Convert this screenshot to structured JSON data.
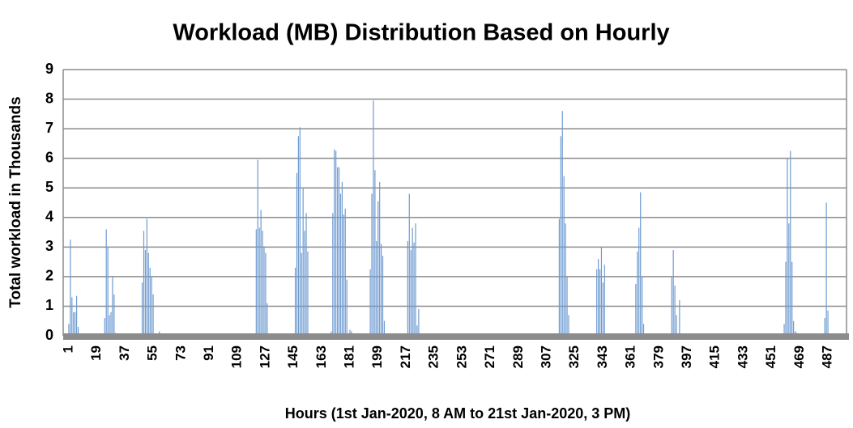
{
  "chart_data": {
    "type": "bar",
    "title": "Workload (MB) Distribution Based on Hourly",
    "xlabel": "Hours (1st Jan-2020, 8 AM to 21st Jan-2020, 3 PM)",
    "ylabel": "Total workload in Thousands",
    "color": "#6f9bd1",
    "grid": true,
    "xlim": [
      -2.6,
      498.9
    ],
    "xticks": [
      1,
      19,
      37,
      55,
      73,
      91,
      109,
      127,
      145,
      163,
      181,
      199,
      217,
      235,
      253,
      271,
      289,
      307,
      325,
      343,
      361,
      379,
      397,
      415,
      433,
      451,
      469,
      487
    ],
    "ylim": [
      0,
      9
    ],
    "yticks": [
      0,
      1,
      2,
      3,
      4,
      5,
      6,
      7,
      8,
      9
    ],
    "x": [
      1,
      2,
      3,
      4,
      5,
      6,
      7,
      24,
      25,
      26,
      27,
      28,
      29,
      30,
      31,
      48,
      49,
      50,
      51,
      52,
      53,
      54,
      55,
      59,
      121,
      122,
      123,
      124,
      125,
      126,
      127,
      128,
      146,
      147,
      148,
      149,
      150,
      151,
      152,
      153,
      154,
      169,
      170,
      171,
      172,
      173,
      174,
      175,
      176,
      177,
      178,
      179,
      181,
      182,
      194,
      195,
      196,
      197,
      198,
      199,
      200,
      201,
      202,
      203,
      218,
      219,
      220,
      221,
      222,
      223,
      224,
      225,
      315,
      316,
      317,
      318,
      319,
      320,
      321,
      339,
      340,
      341,
      342,
      343,
      344,
      364,
      365,
      366,
      367,
      368,
      369,
      387,
      388,
      389,
      390,
      392,
      459,
      460,
      461,
      462,
      463,
      464,
      465,
      466,
      467,
      485,
      486,
      487
    ],
    "values": [
      0.4,
      3.25,
      1.3,
      0.8,
      0.8,
      1.35,
      0.3,
      0.6,
      3.6,
      3.0,
      0.7,
      0.8,
      2.0,
      1.4,
      0.1,
      1.8,
      3.55,
      2.9,
      3.95,
      2.8,
      2.3,
      2.0,
      1.4,
      0.15,
      3.6,
      5.95,
      3.65,
      4.25,
      3.55,
      3.0,
      2.8,
      1.1,
      2.3,
      5.5,
      6.75,
      7.05,
      2.8,
      5.0,
      3.55,
      4.15,
      2.85,
      0.15,
      4.15,
      6.3,
      6.25,
      5.7,
      5.7,
      4.8,
      5.2,
      4.1,
      4.3,
      1.9,
      0.2,
      0.15,
      2.25,
      4.8,
      7.95,
      5.6,
      3.2,
      4.55,
      5.2,
      3.1,
      2.7,
      0.5,
      3.2,
      4.8,
      2.9,
      3.65,
      3.15,
      3.8,
      0.35,
      0.9,
      3.95,
      6.75,
      7.6,
      5.4,
      3.8,
      2.0,
      0.7,
      2.25,
      2.6,
      2.25,
      3.0,
      1.8,
      2.4,
      1.75,
      2.85,
      3.65,
      4.85,
      2.0,
      0.4,
      2.0,
      2.9,
      1.7,
      0.7,
      1.2,
      0.4,
      2.5,
      6.0,
      3.8,
      6.25,
      2.5,
      0.5,
      0.15,
      0.1,
      0.6,
      4.5,
      0.85
    ]
  }
}
